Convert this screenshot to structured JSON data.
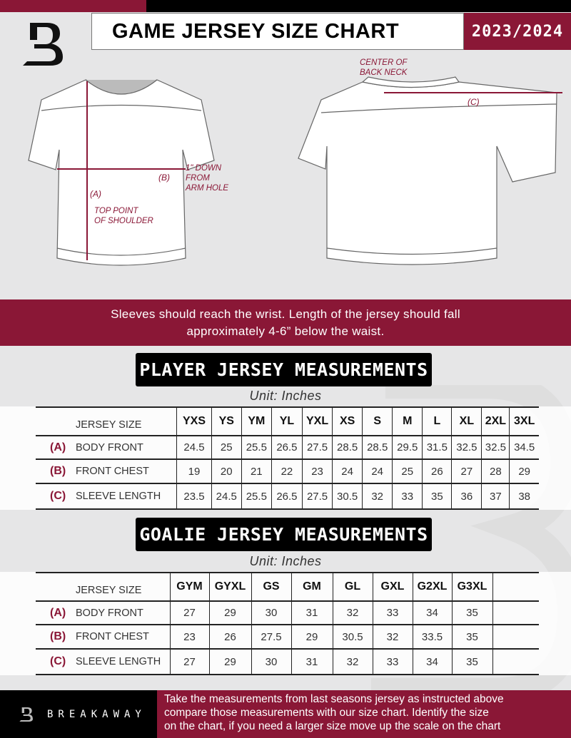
{
  "header": {
    "title": "GAME JERSEY SIZE CHART",
    "season": "2023/2024",
    "logo_letter": "B"
  },
  "diagram": {
    "notes": {
      "center_back_neck": [
        "CENTER OF",
        "BACK NECK"
      ],
      "down_from_arm": [
        "1\" DOWN",
        "FROM",
        "ARM HOLE"
      ],
      "top_shoulder": [
        "TOP POINT",
        "OF SHOULDER"
      ]
    },
    "markers": {
      "a": "(A)",
      "b": "(B)",
      "c": "(C)"
    },
    "accent": "#8a1736"
  },
  "instruction": [
    "Sleeves should reach the wrist. Length of the jersey should fall",
    "approximately 4-6” below the waist."
  ],
  "player": {
    "title": "PLAYER JERSEY MEASUREMENTS",
    "unit": "Unit: Inches",
    "size_label": "JERSEY SIZE",
    "sizes": [
      "YXS",
      "YS",
      "YM",
      "YL",
      "YXL",
      "XS",
      "S",
      "M",
      "L",
      "XL",
      "2XL",
      "3XL"
    ],
    "rows": [
      {
        "letter": "(A)",
        "label": "BODY FRONT",
        "values": [
          "24.5",
          "25",
          "25.5",
          "26.5",
          "27.5",
          "28.5",
          "28.5",
          "29.5",
          "31.5",
          "32.5",
          "32.5",
          "34.5"
        ]
      },
      {
        "letter": "(B)",
        "label": "FRONT CHEST",
        "values": [
          "19",
          "20",
          "21",
          "22",
          "23",
          "24",
          "24",
          "25",
          "26",
          "27",
          "28",
          "29"
        ]
      },
      {
        "letter": "(C)",
        "label": "SLEEVE LENGTH",
        "values": [
          "23.5",
          "24.5",
          "25.5",
          "26.5",
          "27.5",
          "30.5",
          "32",
          "33",
          "35",
          "36",
          "37",
          "38"
        ]
      }
    ]
  },
  "goalie": {
    "title": "GOALIE JERSEY MEASUREMENTS",
    "unit": "Unit: Inches",
    "size_label": "JERSEY SIZE",
    "sizes": [
      "GYM",
      "GYXL",
      "GS",
      "GM",
      "GL",
      "GXL",
      "G2XL",
      "G3XL",
      ""
    ],
    "rows": [
      {
        "letter": "(A)",
        "label": "BODY FRONT",
        "values": [
          "27",
          "29",
          "30",
          "31",
          "32",
          "33",
          "34",
          "35",
          ""
        ]
      },
      {
        "letter": "(B)",
        "label": "FRONT CHEST",
        "values": [
          "23",
          "26",
          "27.5",
          "29",
          "30.5",
          "32",
          "33.5",
          "35",
          ""
        ]
      },
      {
        "letter": "(C)",
        "label": "SLEEVE LENGTH",
        "values": [
          "27",
          "29",
          "30",
          "31",
          "32",
          "33",
          "34",
          "35",
          ""
        ]
      }
    ]
  },
  "footer": {
    "brand": "BREAKAWAY",
    "text": [
      "Take the measurements from last seasons jersey as instructed above",
      "compare those measurements  with our size chart. Identify the size",
      "on the chart, if you need a larger size move up the scale on the chart"
    ]
  }
}
